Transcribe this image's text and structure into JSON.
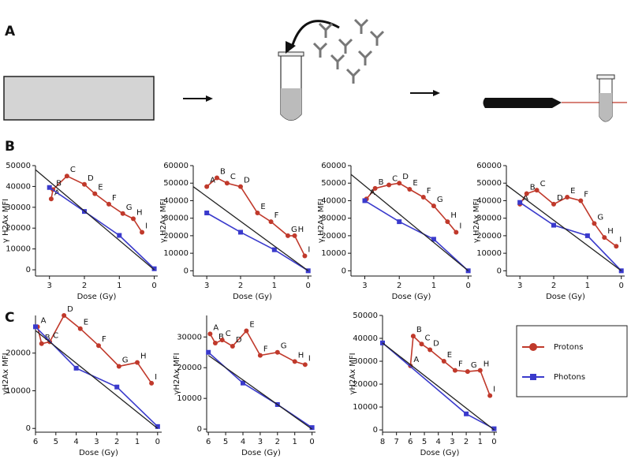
{
  "panels": [
    "A",
    "B",
    "C"
  ],
  "chart_data": [
    {
      "type": "line",
      "ylabel": "γ H2Ax MFI",
      "xlabel": "Dose (Gy)",
      "xlim": [
        3.4,
        -0.1
      ],
      "xticks": [
        3,
        2,
        1,
        0
      ],
      "ylim": [
        -3000,
        50000
      ],
      "yticks": [
        0,
        10000,
        20000,
        30000,
        40000,
        50000
      ],
      "point_labels": [
        "A",
        "B",
        "C",
        "D",
        "E",
        "F",
        "G",
        "H",
        "I"
      ],
      "series": [
        {
          "name": "Protons",
          "color": "#c0392b",
          "x": [
            2.95,
            2.9,
            2.5,
            2.0,
            1.7,
            1.3,
            0.9,
            0.6,
            0.35
          ],
          "values": [
            34000,
            38500,
            45000,
            41000,
            36500,
            31500,
            27000,
            24500,
            18000
          ]
        },
        {
          "name": "Photons",
          "color": "#3a3acc",
          "x": [
            3,
            2,
            1,
            0
          ],
          "values": [
            39500,
            28000,
            16500,
            500
          ]
        },
        {
          "color": "#222222",
          "x": [
            3.4,
            0
          ],
          "values": [
            48000,
            0
          ]
        }
      ]
    },
    {
      "type": "line",
      "ylabel": "γ H2Ax MFI",
      "xlabel": "Dose (Gy)",
      "xlim": [
        3.4,
        -0.1
      ],
      "xticks": [
        3,
        2,
        1,
        0
      ],
      "ylim": [
        -3000,
        60000
      ],
      "yticks": [
        0,
        10000,
        20000,
        30000,
        40000,
        50000,
        60000
      ],
      "point_labels": [
        "A",
        "B",
        "C",
        "D",
        "E",
        "F",
        "G",
        "H",
        "I"
      ],
      "series": [
        {
          "name": "Protons",
          "color": "#c0392b",
          "x": [
            3.0,
            2.7,
            2.4,
            2.0,
            1.5,
            1.1,
            0.6,
            0.4,
            0.1
          ],
          "values": [
            48000,
            53000,
            50000,
            48000,
            33000,
            28000,
            20000,
            20000,
            8500
          ]
        },
        {
          "name": "Photons",
          "color": "#3a3acc",
          "x": [
            3,
            2,
            1,
            0
          ],
          "values": [
            33000,
            22000,
            12000,
            0
          ]
        },
        {
          "color": "#222222",
          "x": [
            3.4,
            0
          ],
          "values": [
            48000,
            0
          ]
        }
      ]
    },
    {
      "type": "line",
      "ylabel": "γ H2Ax MFI",
      "xlabel": "Dose (Gy)",
      "xlim": [
        3.4,
        -0.1
      ],
      "xticks": [
        3,
        2,
        1,
        0
      ],
      "ylim": [
        -3000,
        60000
      ],
      "yticks": [
        0,
        10000,
        20000,
        30000,
        40000,
        50000,
        60000
      ],
      "point_labels": [
        "A",
        "B",
        "C",
        "D",
        "E",
        "F",
        "G",
        "H",
        "I"
      ],
      "series": [
        {
          "name": "Protons",
          "color": "#c0392b",
          "x": [
            2.95,
            2.7,
            2.3,
            2.0,
            1.7,
            1.3,
            1.0,
            0.6,
            0.35
          ],
          "values": [
            41000,
            47000,
            49000,
            50000,
            46500,
            42000,
            37000,
            28000,
            22000
          ]
        },
        {
          "name": "Photons",
          "color": "#3a3acc",
          "x": [
            3,
            2,
            1,
            0
          ],
          "values": [
            40000,
            28000,
            18000,
            0
          ]
        },
        {
          "color": "#222222",
          "x": [
            3.4,
            0
          ],
          "values": [
            55000,
            0
          ]
        }
      ]
    },
    {
      "type": "line",
      "ylabel": "γ H2Ax MFI",
      "xlabel": "Dose (Gy)",
      "xlim": [
        3.4,
        -0.1
      ],
      "xticks": [
        3,
        2,
        1,
        0
      ],
      "ylim": [
        -3000,
        60000
      ],
      "yticks": [
        0,
        10000,
        20000,
        30000,
        40000,
        50000,
        60000
      ],
      "point_labels": [
        "A",
        "B",
        "C",
        "D",
        "E",
        "F",
        "G",
        "H",
        "I"
      ],
      "series": [
        {
          "name": "Protons",
          "color": "#c0392b",
          "x": [
            3.0,
            2.8,
            2.5,
            2.0,
            1.6,
            1.2,
            0.8,
            0.5,
            0.15
          ],
          "values": [
            38000,
            44000,
            46000,
            38000,
            42000,
            40000,
            27000,
            19000,
            14000
          ]
        },
        {
          "name": "Photons",
          "color": "#3a3acc",
          "x": [
            3,
            2,
            1,
            0
          ],
          "values": [
            39000,
            26000,
            20000,
            0
          ]
        },
        {
          "color": "#222222",
          "x": [
            3.4,
            0
          ],
          "values": [
            49000,
            0
          ]
        }
      ]
    },
    {
      "type": "line",
      "ylabel": "γH2Ax MFI",
      "xlabel": "Dose (Gy)",
      "xlim": [
        6,
        -0.2
      ],
      "xticks": [
        6,
        5,
        4,
        3,
        2,
        1,
        0
      ],
      "ylim": [
        -1000,
        30000
      ],
      "yticks": [
        0,
        10000,
        20000
      ],
      "point_labels": [
        "A",
        "B",
        "C",
        "D",
        "E",
        "F",
        "G",
        "H",
        "I"
      ],
      "series": [
        {
          "name": "Protons",
          "color": "#c0392b",
          "x": [
            5.9,
            5.7,
            5.3,
            4.6,
            3.8,
            2.9,
            1.9,
            1.0,
            0.3
          ],
          "values": [
            27000,
            22500,
            23000,
            30000,
            26500,
            22000,
            16500,
            17500,
            12000
          ]
        },
        {
          "name": "Photons",
          "color": "#3a3acc",
          "x": [
            6,
            4,
            2,
            0
          ],
          "values": [
            27000,
            16000,
            11000,
            500
          ]
        },
        {
          "color": "#222222",
          "x": [
            6,
            0
          ],
          "values": [
            26000,
            0
          ]
        }
      ]
    },
    {
      "type": "line",
      "ylabel": "γH2Ax MFI",
      "xlabel": "Dose (Gy)",
      "xlim": [
        6.1,
        -0.2
      ],
      "xticks": [
        6,
        5,
        4,
        3,
        2,
        1,
        0
      ],
      "ylim": [
        -1000,
        37000
      ],
      "yticks": [
        0,
        10000,
        20000,
        30000
      ],
      "point_labels": [
        "A",
        "B",
        "C",
        "D",
        "E",
        "F",
        "G",
        "H",
        "I"
      ],
      "series": [
        {
          "name": "Protons",
          "color": "#c0392b",
          "x": [
            5.9,
            5.6,
            5.2,
            4.6,
            3.8,
            3.0,
            2.0,
            1.0,
            0.4
          ],
          "values": [
            31000,
            28000,
            29000,
            27000,
            32000,
            24000,
            25000,
            22000,
            21000
          ]
        },
        {
          "name": "Photons",
          "color": "#3a3acc",
          "x": [
            6,
            4,
            2,
            0
          ],
          "values": [
            25000,
            15000,
            8000,
            500
          ]
        },
        {
          "color": "#222222",
          "x": [
            6,
            0
          ],
          "values": [
            24000,
            0
          ]
        }
      ]
    },
    {
      "type": "line",
      "ylabel": "γH2Ax MFI",
      "xlabel": "Dose (Gy)",
      "xlim": [
        8,
        -0.2
      ],
      "xticks": [
        8,
        7,
        6,
        5,
        4,
        3,
        2,
        1,
        0
      ],
      "ylim": [
        -1000,
        50000
      ],
      "yticks": [
        0,
        10000,
        20000,
        30000,
        40000,
        50000
      ],
      "point_labels": [
        "A",
        "B",
        "C",
        "D",
        "E",
        "F",
        "G",
        "H",
        "I"
      ],
      "series": [
        {
          "name": "Protons",
          "color": "#c0392b",
          "x": [
            6.0,
            5.8,
            5.2,
            4.6,
            3.6,
            2.8,
            1.9,
            1.0,
            0.3
          ],
          "values": [
            28000,
            41000,
            37500,
            35000,
            30000,
            26000,
            25500,
            26000,
            15000
          ]
        },
        {
          "name": "Photons",
          "color": "#3a3acc",
          "x": [
            8,
            2,
            0
          ],
          "values": [
            38000,
            7000,
            500
          ]
        },
        {
          "color": "#222222",
          "x": [
            8,
            0
          ],
          "values": [
            38000,
            0
          ]
        }
      ]
    }
  ]
}
